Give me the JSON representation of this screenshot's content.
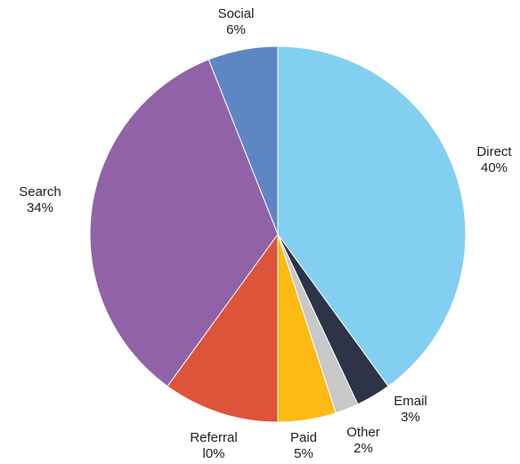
{
  "chart_data": {
    "type": "pie",
    "title": "",
    "slices": [
      {
        "name": "Direct",
        "value": 40,
        "label": "40%",
        "color": "#83cff1"
      },
      {
        "name": "Email",
        "value": 3,
        "label": "3%",
        "color": "#2e3447"
      },
      {
        "name": "Other",
        "value": 2,
        "label": "2%",
        "color": "#c8c8c8"
      },
      {
        "name": "Paid",
        "value": 5,
        "label": "5%",
        "color": "#fdba12"
      },
      {
        "name": "Referral",
        "value": 10,
        "label": "l0%",
        "color": "#dc543a"
      },
      {
        "name": "Search",
        "value": 34,
        "label": "34%",
        "color": "#9162a8"
      },
      {
        "name": "Social",
        "value": 6,
        "label": "6%",
        "color": "#5f86c4"
      }
    ],
    "start_angle_deg": 0,
    "direction": "clockwise",
    "legend": "none"
  }
}
